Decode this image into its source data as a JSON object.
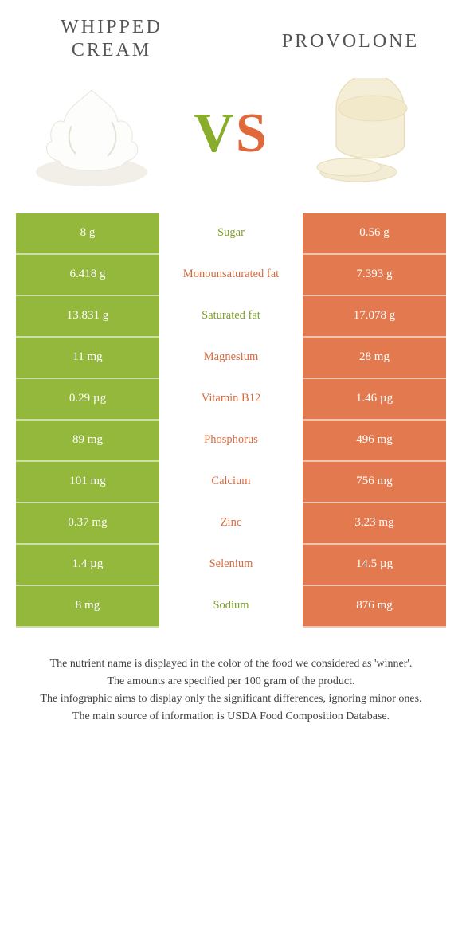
{
  "colors": {
    "green": "#93b83b",
    "orange": "#e37a4f",
    "orange_text": "#d96a3d",
    "green_text": "#7ea02c",
    "vs_green": "#88ad2a",
    "vs_orange": "#e1683a"
  },
  "header": {
    "left_title": "Whipped cream",
    "right_title": "Provolone",
    "vs_v": "V",
    "vs_s": "S"
  },
  "rows": [
    {
      "nutrient": "Sugar",
      "left": "8 g",
      "right": "0.56 g",
      "winner": "left"
    },
    {
      "nutrient": "Monounsaturated fat",
      "left": "6.418 g",
      "right": "7.393 g",
      "winner": "right"
    },
    {
      "nutrient": "Saturated fat",
      "left": "13.831 g",
      "right": "17.078 g",
      "winner": "left"
    },
    {
      "nutrient": "Magnesium",
      "left": "11 mg",
      "right": "28 mg",
      "winner": "right"
    },
    {
      "nutrient": "Vitamin B12",
      "left": "0.29 µg",
      "right": "1.46 µg",
      "winner": "right"
    },
    {
      "nutrient": "Phosphorus",
      "left": "89 mg",
      "right": "496 mg",
      "winner": "right"
    },
    {
      "nutrient": "Calcium",
      "left": "101 mg",
      "right": "756 mg",
      "winner": "right"
    },
    {
      "nutrient": "Zinc",
      "left": "0.37 mg",
      "right": "3.23 mg",
      "winner": "right"
    },
    {
      "nutrient": "Selenium",
      "left": "1.4 µg",
      "right": "14.5 µg",
      "winner": "right"
    },
    {
      "nutrient": "Sodium",
      "left": "8 mg",
      "right": "876 mg",
      "winner": "left"
    }
  ],
  "footnotes": [
    "The nutrient name is displayed in the color of the food we considered as 'winner'.",
    "The amounts are specified per 100 gram of the product.",
    "The infographic aims to display only the significant differences, ignoring minor ones.",
    "The main source of information is USDA Food Composition Database."
  ]
}
